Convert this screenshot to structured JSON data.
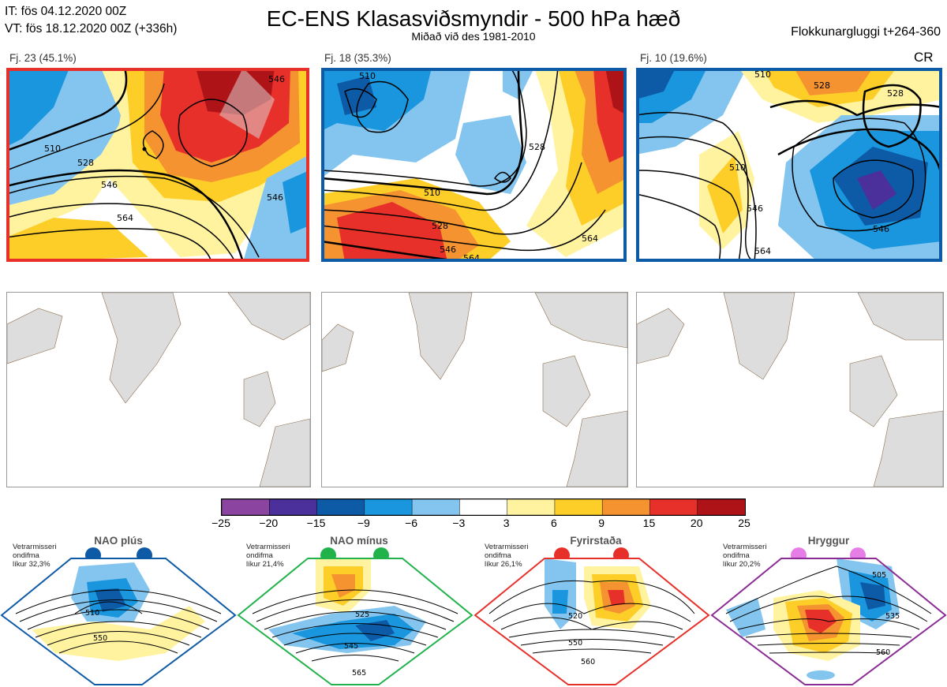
{
  "header": {
    "init_time": "IT: fös 04.12.2020 00Z",
    "valid_time": "VT: fös 18.12.2020 00Z  (+336h)",
    "title": "EC-ENS Klasasviðsmyndir - 500 hPa hæð",
    "subtitle": "Miðað við des 1981-2010",
    "window": "Flokkunargluggi t+264-360",
    "regime_code": "CR"
  },
  "clusters": [
    {
      "label": "Fj. 23 (45.1%)",
      "frame_color": "#e8302a",
      "contours": [
        "546",
        "510",
        "528",
        "546",
        "564",
        "546"
      ]
    },
    {
      "label": "Fj. 18 (35.3%)",
      "frame_color": "#0d5aa7",
      "contours": [
        "510",
        "528",
        "510",
        "528",
        "546",
        "564",
        "564"
      ]
    },
    {
      "label": "Fj. 10 (19.6%)",
      "frame_color": "#0d5aa7",
      "contours": [
        "510",
        "528",
        "528",
        "546",
        "546",
        "564",
        "510"
      ]
    }
  ],
  "colorbar": {
    "ticks": [
      "−25",
      "−20",
      "−15",
      "−9",
      "−6",
      "−3",
      "3",
      "6",
      "9",
      "15",
      "20",
      "25"
    ],
    "colors": [
      "#8b45a0",
      "#4b2f9a",
      "#0d5aa7",
      "#1996dd",
      "#83c5ee",
      "#ffffff",
      "#fff3a0",
      "#fdcd28",
      "#f59331",
      "#e8302a",
      "#ae1417"
    ]
  },
  "regimes": [
    {
      "name": "NAO plús",
      "dot_color": "#0d5aa7",
      "frame_color": "#0d5aa7",
      "text": [
        "Vetrarmisseri",
        "ondifma",
        "líkur 32,3%"
      ],
      "contours": [
        "510",
        "550"
      ]
    },
    {
      "name": "NAO mínus",
      "dot_color": "#22b24b",
      "frame_color": "#22b24b",
      "text": [
        "Vetrarmisseri",
        "ondifma",
        "líkur 21,4%"
      ],
      "contours": [
        "525",
        "545",
        "565"
      ]
    },
    {
      "name": "Fyrirstaða",
      "dot_color": "#e8302a",
      "frame_color": "#e8302a",
      "text": [
        "Vetrarmisseri",
        "ondifma",
        "líkur 26,1%"
      ],
      "contours": [
        "520",
        "550",
        "560"
      ]
    },
    {
      "name": "Hryggur",
      "dot_color": "#e77ee8",
      "frame_color": "#8b2c95",
      "text": [
        "Vetrarmisseri",
        "ondifma",
        "líkur 20,2%"
      ],
      "contours": [
        "505",
        "535",
        "560"
      ]
    }
  ]
}
